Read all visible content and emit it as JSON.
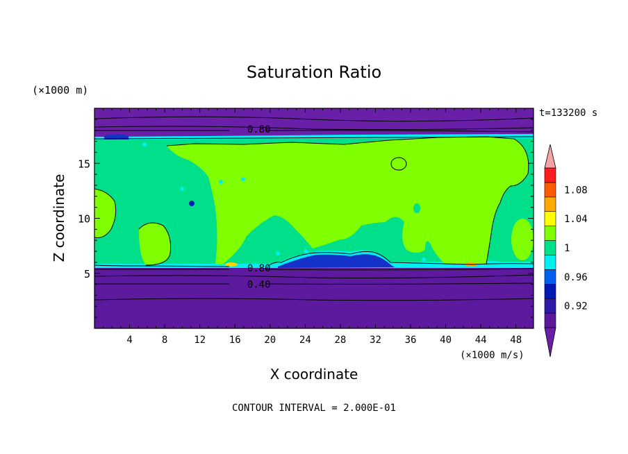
{
  "chart_data": {
    "type": "contour",
    "title": "Saturation Ratio",
    "time_label": "t=133200 s",
    "xlabel": "X coordinate",
    "ylabel": "Z coordinate",
    "x_units": "(×1000 m/s)",
    "y_units": "(×1000 m)",
    "xlim": [
      0,
      50
    ],
    "ylim": [
      0,
      20
    ],
    "x_ticks": [
      4,
      8,
      12,
      16,
      20,
      24,
      28,
      32,
      36,
      40,
      44,
      48
    ],
    "y_ticks": [
      5,
      10,
      15
    ],
    "contour_interval": "CONTOUR INTERVAL = 2.000E-01",
    "contour_labels": [
      {
        "text": "0.80",
        "x": 17.3,
        "z": 18.1
      },
      {
        "text": "0.80",
        "x": 17.3,
        "z": 5.5
      },
      {
        "text": "0.40",
        "x": 17.3,
        "z": 4.0
      }
    ],
    "colorbar": {
      "levels": [
        0.9,
        0.92,
        0.94,
        0.96,
        0.98,
        1.0,
        1.02,
        1.04,
        1.06,
        1.08,
        1.1
      ],
      "labels": [
        "0.92",
        "0.96",
        "1",
        "1.04",
        "1.08"
      ],
      "colors": [
        "#5a189a",
        "#2e1aa6",
        "#0018b4",
        "#005ff0",
        "#00f0f0",
        "#00e08a",
        "#80ff00",
        "#ffff00",
        "#ffaa00",
        "#ff5a00",
        "#ff1c1c",
        "#f4a4a4"
      ],
      "below_color": "#6a1fa8",
      "above_color": "#f4a4a4"
    }
  }
}
